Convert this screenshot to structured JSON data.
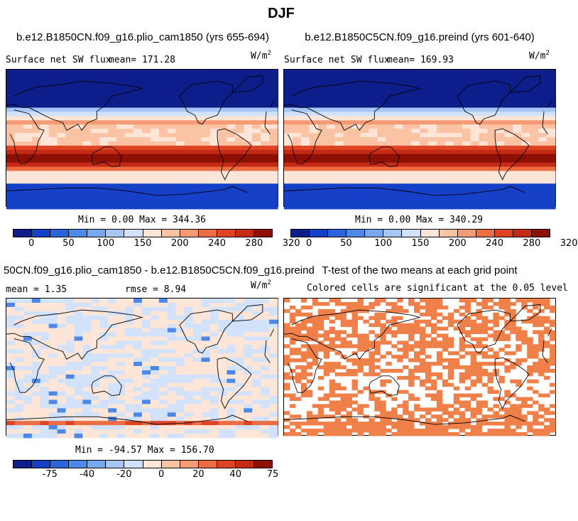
{
  "figure_title": "DJF",
  "panels": [
    {
      "title": "b.e12.B1850CN.f09_g16.plio_cam1850 (yrs 655-694)",
      "label": "Surface net SW flux",
      "stat": "mean= 171.28",
      "units": "W/m",
      "units_exp": "2",
      "minmax": "Min =   0.00 Max = 344.36"
    },
    {
      "title": "b.e12.B1850C5CN.f09_g16.preind (yrs 601-640)",
      "label": "Surface net SW flux",
      "stat": "mean= 169.93",
      "units": "W/m",
      "units_exp": "2",
      "minmax": "Min =   0.00 Max = 340.29"
    },
    {
      "title": "50CN.f09_g16.plio_cam1850 - b.e12.B1850C5CN.f09_g16.preind",
      "mean": "mean =   1.35",
      "rmse": "rmse =   8.94",
      "units": "W/m",
      "units_exp": "2",
      "minmax": "Min = -94.57 Max = 156.70"
    },
    {
      "title": "T-test of the two means at each grid point",
      "subtitle": "Colored cells are significant at the 0.05 level"
    }
  ],
  "chart_data": [
    {
      "type": "heatmap",
      "title": "b.e12.B1850CN.f09_g16.plio_cam1850 (yrs 655-694)",
      "variable": "Surface net SW flux",
      "mean": 171.28,
      "min": 0.0,
      "max": 344.36,
      "colorbar_ticks": [
        "0",
        "50",
        "100",
        "150",
        "200",
        "240",
        "280",
        "320"
      ],
      "colorbar_colors": [
        "#0d1e8a",
        "#1540c8",
        "#2a64dc",
        "#4c88e8",
        "#78a8f0",
        "#a6c6f6",
        "#d2e2fa",
        "#fde6d8",
        "#f9c3a4",
        "#f49a74",
        "#ec6c44",
        "#de4424",
        "#c42a14",
        "#8c1006"
      ]
    },
    {
      "type": "heatmap",
      "title": "b.e12.B1850C5CN.f09_g16.preind (yrs 601-640)",
      "variable": "Surface net SW flux",
      "mean": 169.93,
      "min": 0.0,
      "max": 340.29,
      "colorbar_ticks": [
        "0",
        "50",
        "100",
        "150",
        "200",
        "240",
        "280",
        "320"
      ],
      "colorbar_colors": [
        "#0d1e8a",
        "#1540c8",
        "#2a64dc",
        "#4c88e8",
        "#78a8f0",
        "#a6c6f6",
        "#d2e2fa",
        "#fde6d8",
        "#f9c3a4",
        "#f49a74",
        "#ec6c44",
        "#de4424",
        "#c42a14",
        "#8c1006"
      ]
    },
    {
      "type": "heatmap",
      "title": "50CN.f09_g16.plio_cam1850 - b.e12.B1850C5CN.f09_g16.preind",
      "mean": 1.35,
      "rmse": 8.94,
      "min": -94.57,
      "max": 156.7,
      "colorbar_ticks": [
        "-75",
        "-40",
        "-20",
        "0",
        "20",
        "40",
        "75"
      ],
      "colorbar_colors": [
        "#0d1e8a",
        "#1540c8",
        "#2a64dc",
        "#4c88e8",
        "#78a8f0",
        "#a6c6f6",
        "#d2e2fa",
        "#fde6d8",
        "#f9c3a4",
        "#f49a74",
        "#ec6c44",
        "#de4424",
        "#c42a14",
        "#8c1006"
      ]
    },
    {
      "type": "heatmap",
      "title": "T-test of the two means at each grid point",
      "significance_level": 0.05,
      "significant_color": "#f0804a"
    }
  ]
}
